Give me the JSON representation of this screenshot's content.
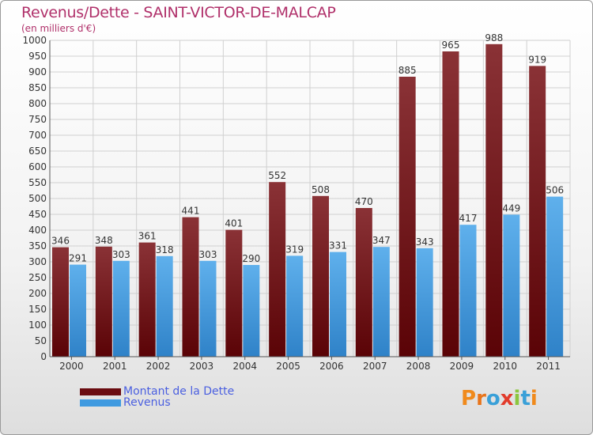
{
  "title": "Revenus/Dette - SAINT-VICTOR-DE-MALCAP",
  "subtitle": "(en milliers d'€)",
  "colors": {
    "dette": "#7a1e22",
    "revenus": "#4aa3e6",
    "title": "#b0306a",
    "legend_text": "#4a5fe0",
    "grid": "#d0d0d0"
  },
  "legend": [
    {
      "label": "Montant de la Dette",
      "color": "#6a0c10"
    },
    {
      "label": "Revenus",
      "color": "#3f9ae0"
    }
  ],
  "logo": {
    "text": "Proxiti"
  },
  "chart_data": {
    "type": "bar",
    "title": "Revenus/Dette - SAINT-VICTOR-DE-MALCAP",
    "ylabel": "(en milliers d'€)",
    "categories": [
      "2000",
      "2001",
      "2002",
      "2003",
      "2004",
      "2005",
      "2006",
      "2007",
      "2008",
      "2009",
      "2010",
      "2011"
    ],
    "series": [
      {
        "name": "Montant de la Dette",
        "values": [
          346,
          348,
          361,
          441,
          401,
          552,
          508,
          470,
          885,
          965,
          988,
          919
        ]
      },
      {
        "name": "Revenus",
        "values": [
          291,
          303,
          318,
          303,
          290,
          319,
          331,
          347,
          343,
          417,
          449,
          506
        ]
      }
    ],
    "ylim": [
      0,
      1000
    ],
    "yticks": [
      0,
      50,
      100,
      150,
      200,
      250,
      300,
      350,
      400,
      450,
      500,
      550,
      600,
      650,
      700,
      750,
      800,
      850,
      900,
      950,
      1000
    ],
    "grid": true,
    "legend_position": "bottom-left"
  }
}
